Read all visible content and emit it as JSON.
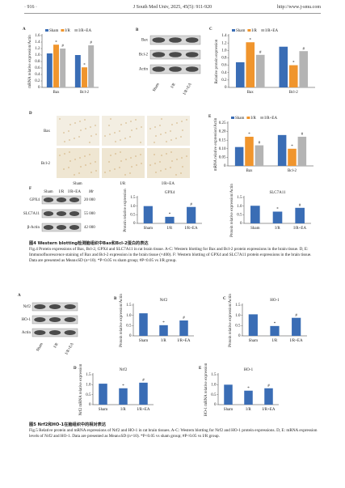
{
  "header": {
    "page": "· 916 ·",
    "journal": "J South Med Univ, 2025, 45(5): 911-920",
    "url": "http://www.j-smu.com"
  },
  "chart_data": [
    {
      "type": "bar",
      "panel": "A",
      "ylabel": "mRNA relative expression/Actin",
      "categories": [
        "Bax",
        "Bcl-2"
      ],
      "series": [
        {
          "name": "Sham",
          "color": "#3a6db5",
          "values": [
            1.05,
            1.0
          ],
          "annotations": [
            null,
            null
          ]
        },
        {
          "name": "I/R",
          "color": "#f0952d",
          "values": [
            1.32,
            0.62
          ],
          "annotations": [
            "*",
            "*"
          ]
        },
        {
          "name": "I/R+EA",
          "color": "#b4b4b4",
          "values": [
            1.2,
            1.3
          ],
          "annotations": [
            "#",
            "#"
          ]
        }
      ],
      "ylim": [
        0,
        1.6
      ],
      "yticks": [
        0,
        0.2,
        0.4,
        0.6,
        0.8,
        {
          "value": 1,
          "label": "1.0"
        },
        1.2,
        1.4,
        1.6
      ]
    },
    {
      "type": "bar",
      "panel": "C",
      "ylabel": "Relative protein expression",
      "categories": [
        "Bax",
        "Bcl-2"
      ],
      "series": [
        {
          "name": "Sham",
          "color": "#3a6db5",
          "values": [
            0.68,
            1.1
          ],
          "annotations": [
            null,
            null
          ]
        },
        {
          "name": "I/R",
          "color": "#f0952d",
          "values": [
            1.22,
            0.6
          ],
          "annotations": [
            "*",
            "*"
          ]
        },
        {
          "name": "I/R+EA",
          "color": "#b4b4b4",
          "values": [
            0.88,
            0.98
          ],
          "annotations": [
            "#",
            "#"
          ]
        }
      ],
      "ylim": [
        0,
        1.4
      ],
      "yticks": [
        0,
        0.2,
        0.4,
        0.6,
        0.8,
        {
          "value": 1,
          "label": "1.0"
        },
        1.2,
        1.4
      ]
    },
    {
      "type": "bar",
      "panel": "E",
      "ylabel": "mRNA relative expression/Actin",
      "categories": [
        "Bax",
        "Bcl-2"
      ],
      "series": [
        {
          "name": "Sham",
          "color": "#3a6db5",
          "values": [
            0.11,
            0.18
          ],
          "annotations": [
            null,
            null
          ]
        },
        {
          "name": "I/R",
          "color": "#f0952d",
          "values": [
            0.17,
            0.1
          ],
          "annotations": [
            "*",
            "*"
          ]
        },
        {
          "name": "I/R+EA",
          "color": "#b4b4b4",
          "values": [
            0.12,
            0.17
          ],
          "annotations": [
            "#",
            "#"
          ]
        }
      ],
      "ylim": [
        0,
        0.25
      ],
      "yticks": [
        0,
        0.05,
        {
          "value": 0.1,
          "label": "0.10"
        },
        0.15,
        {
          "value": 0.2,
          "label": "0.20"
        },
        0.25
      ]
    },
    {
      "type": "bar",
      "title": "GPX4",
      "ylabel": "Protein relative expression",
      "categories": [
        "Sham",
        "I/R",
        "I/R+EA"
      ],
      "values": [
        1.0,
        0.38,
        0.95
      ],
      "annotations": [
        null,
        "*",
        "#"
      ],
      "color": "#3a6db5",
      "ylim": [
        0,
        1.5
      ],
      "yticks": [
        0,
        0.5,
        {
          "value": 1,
          "label": "1.0"
        },
        1.5
      ]
    },
    {
      "type": "bar",
      "title": "SLC7A11",
      "ylabel": "Protein relative expression/Actin",
      "categories": [
        "Sham",
        "I/R",
        "I/R+EA"
      ],
      "values": [
        1.02,
        0.68,
        0.9
      ],
      "annotations": [
        null,
        "*",
        "#"
      ],
      "color": "#3a6db5",
      "ylim": [
        0,
        1.5
      ],
      "yticks": [
        0,
        0.5,
        {
          "value": 1,
          "label": "1.0"
        },
        1.5
      ]
    },
    {
      "type": "bar",
      "panel": "B",
      "title": "Nrf2",
      "ylabel": "Protein relative expression/Actin",
      "categories": [
        "Sham",
        "I/R",
        "I/R+EA"
      ],
      "values": [
        1.1,
        0.52,
        0.75
      ],
      "annotations": [
        null,
        "*",
        "#"
      ],
      "color": "#3a6db5",
      "ylim": [
        0,
        1.5
      ],
      "yticks": [
        0,
        0.5,
        {
          "value": 1,
          "label": "1.0"
        },
        1.5
      ]
    },
    {
      "type": "bar",
      "panel": "C",
      "title": "HO-1",
      "ylabel": "Protein relative expression/Actin",
      "categories": [
        "Sham",
        "I/R",
        "I/R+EA"
      ],
      "values": [
        1.05,
        0.48,
        0.88
      ],
      "annotations": [
        null,
        "*",
        "#"
      ],
      "color": "#3a6db5",
      "ylim": [
        0,
        1.5
      ],
      "yticks": [
        0,
        0.5,
        {
          "value": 1,
          "label": "1.0"
        },
        1.5
      ]
    },
    {
      "type": "bar",
      "panel": "D",
      "title": "Nrf2",
      "ylabel": "Nrf2 mRNA relative expression",
      "categories": [
        "Sham",
        "I/R",
        "I/R+EA"
      ],
      "values": [
        1.05,
        0.82,
        1.1
      ],
      "annotations": [
        null,
        "*",
        "#"
      ],
      "color": "#3a6db5",
      "ylim": [
        0,
        1.5
      ],
      "yticks": [
        0,
        0.5,
        {
          "value": 1,
          "label": "1.0"
        },
        1.5
      ]
    },
    {
      "type": "bar",
      "panel": "E",
      "title": "HO-1",
      "ylabel": "HO-1 mRNA relative expression",
      "categories": [
        "Sham",
        "I/R",
        "I/R+EA"
      ],
      "values": [
        1.0,
        0.7,
        0.82
      ],
      "annotations": [
        null,
        "*",
        "#"
      ],
      "color": "#3a6db5",
      "ylim": [
        0,
        1.5
      ],
      "yticks": [
        0,
        0.5,
        {
          "value": 1,
          "label": "1.0"
        },
        1.5
      ]
    }
  ],
  "blots": [
    {
      "panel": "B",
      "rows": [
        "Bax",
        "Bcl-2",
        "Actin"
      ],
      "columns": [
        "Sham",
        "I/R",
        "I/R+EA"
      ]
    },
    {
      "panel": "D",
      "rows": [
        "Bax",
        "Bcl-2"
      ],
      "columns": [
        "Sham",
        "I/R",
        "I/R+EA"
      ]
    },
    {
      "panel": "F",
      "rows": [
        "GPX4",
        "SLC7A11",
        "β-Actin"
      ],
      "columns": [
        "Sham",
        "I/R",
        "I/R+EA"
      ],
      "mr": "Mr",
      "weights": [
        "20 000",
        "55 000",
        "42 000"
      ]
    },
    {
      "panel": "A",
      "rows": [
        "Nrf2",
        "HO-1",
        "Actin"
      ],
      "columns": [
        "Sham",
        "I/R",
        "I/R+EA"
      ]
    }
  ],
  "captions": [
    {
      "zh": "图4 Western blotting检测脑组织中Bax和Bcl-2蛋白的表达",
      "en": "Fig.4 Protein expressions of Bax, Bcl-2, GPX4 and SLC7A11 in rat brain tissue. A-C: Western blotting for Bax and Bcl-2 protein expressions in the brain tissue. D, E: Immunofluorescence staining of Bax and Bcl-2 expression in the brain tissue (×400). F: Western blotting of GPX4 and SLC7A11 protein expressions in the brain tissue. Data are presented as Mean±SD (n=10). *P<0.05 vs sham group; #P<0.05 vs I/R group."
    },
    {
      "zh": "图5 Nrf2和HO-1在脑组织中的相对表达",
      "en": "Fig.5 Relative protein and mRNA expressions of Nrf2 and HO-1 in rat brain tissues. A-C: Western blotting for Nrf2 and HO-1 protein expressions. D, E: mRNA expression levels of Nrf2 and HO-1. Data are presented as Mean±SD (n=10). *P<0.05 vs sham group; #P<0.05 vs I/R group."
    }
  ]
}
